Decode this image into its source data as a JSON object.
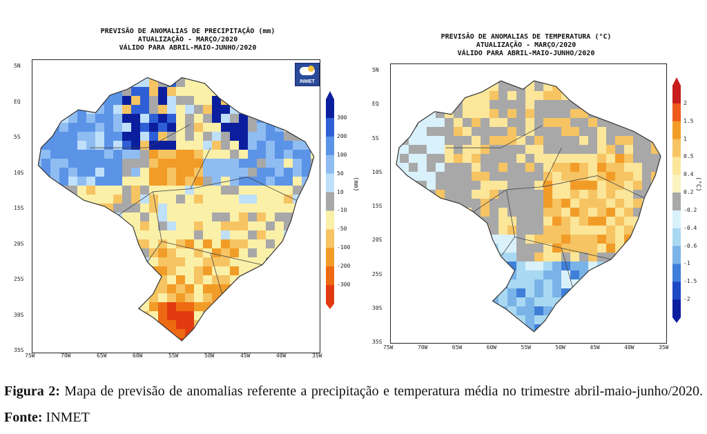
{
  "left_map": {
    "title_lines": [
      "PREVISÃO DE ANOMALIAS DE PRECIPITAÇÃO (mm)",
      "ATUALIZAÇÃO - MARÇO/2020",
      "VÁLIDO PARA ABRIL-MAIO-JUNHO/2020"
    ],
    "lat_labels": [
      "5N",
      "EQ",
      "5S",
      "10S",
      "15S",
      "20S",
      "25S",
      "30S",
      "35S"
    ],
    "lon_labels": [
      "75W",
      "70W",
      "65W",
      "60W",
      "55W",
      "50W",
      "45W",
      "40W",
      "35W"
    ],
    "colorbar_labels": [
      "300",
      "200",
      "100",
      "50",
      "10",
      "-10",
      "-50",
      "-100",
      "-200",
      "-300"
    ],
    "colorbar_colors": [
      "#0b1f9e",
      "#2f5fd6",
      "#5b93e6",
      "#8fbdf2",
      "#bfe0fa",
      "#a8a8a8",
      "#fbf0a8",
      "#f6c462",
      "#f29c28",
      "#ee6a12",
      "#e23a10"
    ],
    "unit": "(mm)",
    "logo_text": "INMET"
  },
  "right_map": {
    "title_lines": [
      "PREVISÃO DE ANOMALIAS DE TEMPERATURA (°C)",
      "ATUALIZAÇÃO - MARÇO/2020",
      "VÁLIDO PARA ABRIL-MAIO-JUNHO/2020"
    ],
    "lat_labels": [
      "5N",
      "EQ",
      "5S",
      "10S",
      "15S",
      "20S",
      "25S",
      "30S",
      "35S"
    ],
    "lon_labels": [
      "75W",
      "70W",
      "65W",
      "60W",
      "55W",
      "50W",
      "45W",
      "40W",
      "35W"
    ],
    "colorbar_labels": [
      "2",
      "1.5",
      "1",
      "0.5",
      "0.4",
      "0.2",
      "-0.2",
      "-0.4",
      "-0.6",
      "-1",
      "-1.5",
      "-2"
    ],
    "colorbar_colors": [
      "#c81e1e",
      "#ee5a1a",
      "#f29c28",
      "#f6c462",
      "#fbe69a",
      "#fbf3c0",
      "#a8a8a8",
      "#d9f1fb",
      "#a9d9f2",
      "#7ab3e8",
      "#3f7fd9",
      "#1c49c4",
      "#0b1f9e"
    ],
    "unit": "(°C)"
  },
  "caption": {
    "figure_label": "Figura 2:",
    "text": " Mapa de previsão de anomalias referente a precipitação e temperatura média no trimestre abril-maio-junho/2020. ",
    "source_label": "Fonte:",
    "source": " INMET"
  }
}
